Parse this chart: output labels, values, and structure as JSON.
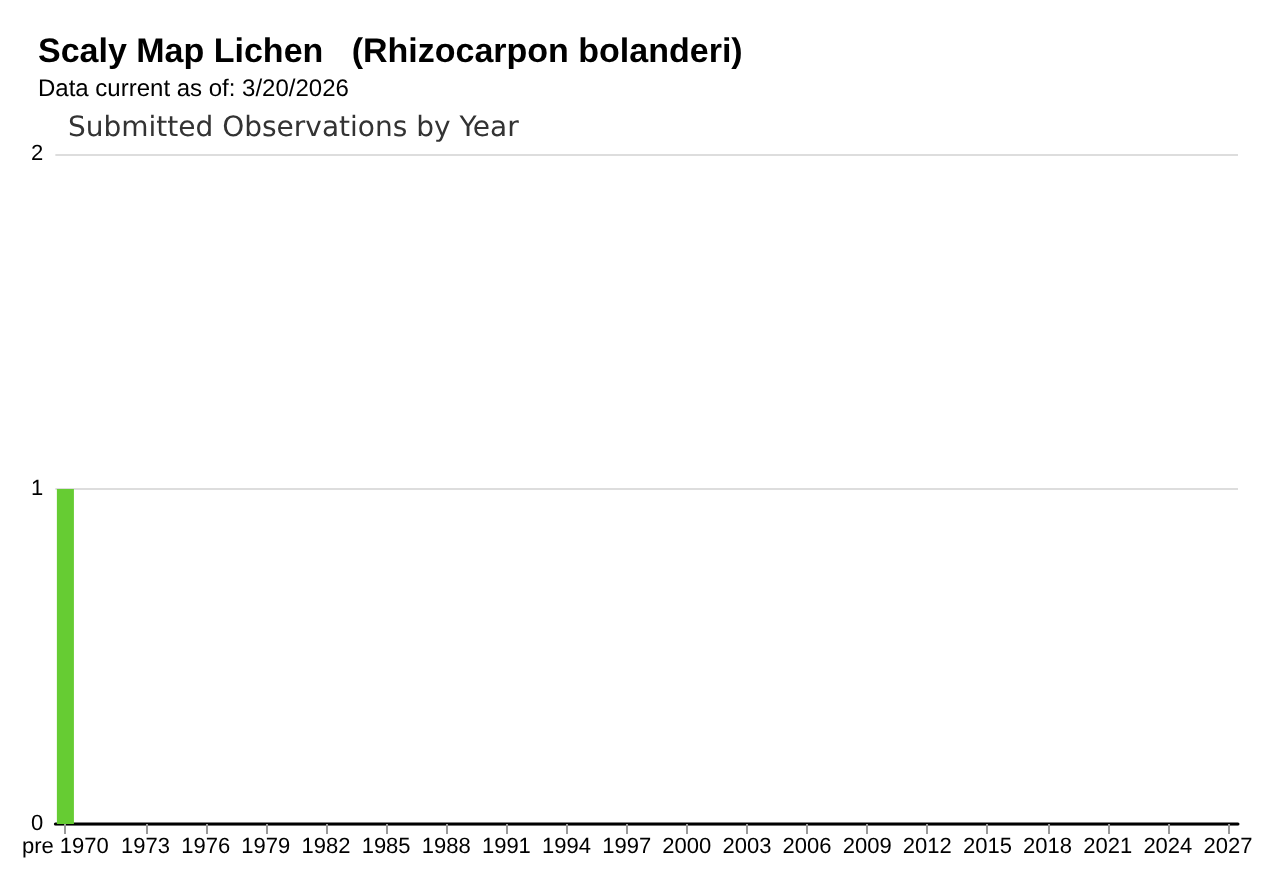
{
  "chart_data": {
    "type": "bar",
    "title": "Scaly Map Lichen   (Rhizocarpon bolanderi)",
    "subtitle": "Data current as of: 3/20/2026",
    "annotations": [
      "Submitted Observations by Year"
    ],
    "categories": [
      "pre 1970",
      null,
      null,
      null,
      "1973",
      null,
      null,
      "1976",
      null,
      null,
      "1979",
      null,
      null,
      "1982",
      null,
      null,
      "1985",
      null,
      null,
      "1988",
      null,
      null,
      "1991",
      null,
      null,
      "1994",
      null,
      null,
      "1997",
      null,
      null,
      "2000",
      null,
      null,
      "2003",
      null,
      null,
      "2006",
      null,
      null,
      "2009",
      null,
      null,
      "2012",
      null,
      null,
      "2015",
      null,
      null,
      "2018",
      null,
      null,
      "2021",
      null,
      null,
      "2024",
      null,
      null,
      "2027"
    ],
    "values": [
      1,
      0,
      0,
      0,
      0,
      0,
      0,
      0,
      0,
      0,
      0,
      0,
      0,
      0,
      0,
      0,
      0,
      0,
      0,
      0,
      0,
      0,
      0,
      0,
      0,
      0,
      0,
      0,
      0,
      0,
      0,
      0,
      0,
      0,
      0,
      0,
      0,
      0,
      0,
      0,
      0,
      0,
      0,
      0,
      0,
      0,
      0,
      0,
      0,
      0,
      0,
      0,
      0,
      0,
      0,
      0,
      0,
      0,
      0
    ],
    "color": "#66cc33",
    "ylim": [
      0,
      2
    ],
    "yticks": [
      0,
      1,
      2
    ],
    "grid": "y"
  }
}
